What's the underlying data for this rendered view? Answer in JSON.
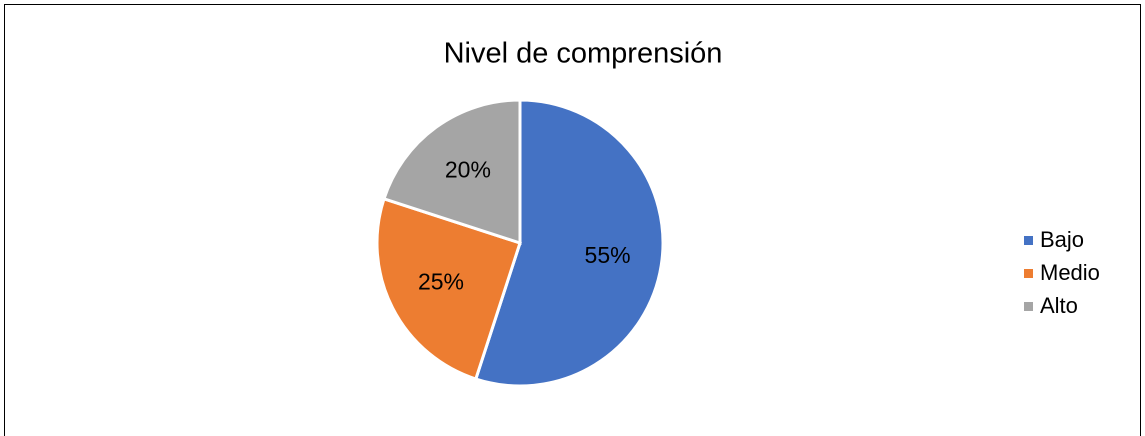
{
  "chart_data": {
    "type": "pie",
    "title": "Nivel de comprensión",
    "categories": [
      "Bajo",
      "Medio",
      "Alto"
    ],
    "values": [
      55,
      25,
      20
    ],
    "value_labels": [
      "55%",
      "25%",
      "20%"
    ],
    "colors": [
      "#4472c4",
      "#ed7d31",
      "#a5a5a5"
    ],
    "legend": "right"
  }
}
